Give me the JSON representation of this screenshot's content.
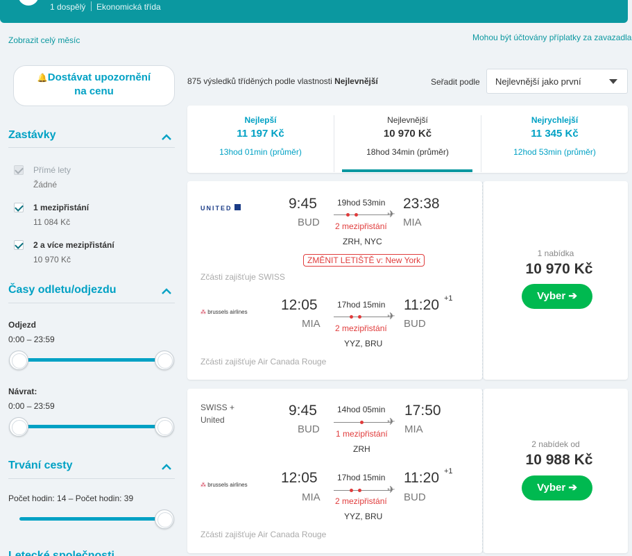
{
  "header": {
    "passengers": "1 dospělý",
    "cabin": "Ekonomická třída"
  },
  "links": {
    "whole_month": "Zobrazit celý měsíc",
    "bag_fees": "Mohou být účtovány příplatky za zavazadla"
  },
  "alert": {
    "line1": "Dostávat upozornění",
    "line2": "na cenu"
  },
  "filters": {
    "stops": {
      "title": "Zastávky",
      "options": [
        {
          "label": "Přímé lety",
          "sub": "Žádné"
        },
        {
          "label": "1 mezipřistání",
          "sub": "11 084 Kč"
        },
        {
          "label": "2 a více mezipřistání",
          "sub": "10 970 Kč"
        }
      ]
    },
    "times": {
      "title": "Časy odletu/odjezdu",
      "depart_label": "Odjezd",
      "depart_range": "0:00 – 23:59",
      "return_label": "Návrat:",
      "return_range": "0:00 – 23:59"
    },
    "duration": {
      "title": "Trvání cesty",
      "range": "Počet hodin: 14 – Počet hodin: 39"
    }
  },
  "sort": {
    "count_text": "875 výsledků tříděných podle vlastnosti",
    "count_bold": "Nejlevnější",
    "label": "Seřadit podle",
    "selected": "Nejlevnější jako první"
  },
  "tabs": [
    {
      "label": "Nejlepší",
      "price": "11 197 Kč",
      "duration": "13hod 01min (průměr)"
    },
    {
      "label": "Nejlevnější",
      "price": "10 970 Kč",
      "duration": "18hod 34min (průměr)"
    },
    {
      "label": "Nejrychlejší",
      "price": "11 345 Kč",
      "duration": "12hod 53min (průměr)"
    }
  ],
  "results": [
    {
      "outbound": {
        "airline": "UNITED",
        "dep": "9:45",
        "dep_ap": "BUD",
        "dur": "19hod 53min",
        "stops": "2 mezipřistání",
        "arr": "23:38",
        "arr_ap": "MIA",
        "via": "ZRH, NYC",
        "warning": "ZMĚNIT LETIŠTĚ v: New York",
        "operated": "Zčásti zajišťuje SWISS"
      },
      "inbound": {
        "airline": "brussels airlines",
        "dep": "12:05",
        "dep_ap": "MIA",
        "dur": "17hod 15min",
        "stops": "2 mezipřistání",
        "arr": "11:20",
        "arr_ap": "BUD",
        "plus": "+1",
        "via": "YYZ, BRU",
        "operated": "Zčásti zajišťuje Air Canada Rouge"
      },
      "offers": "1 nabídka",
      "price": "10 970 Kč",
      "button": "Vyber ➔"
    },
    {
      "outbound": {
        "airline1": "SWISS +",
        "airline2": "United",
        "dep": "9:45",
        "dep_ap": "BUD",
        "dur": "14hod 05min",
        "stops": "1 mezipřistání",
        "arr": "17:50",
        "arr_ap": "MIA",
        "via": "ZRH"
      },
      "inbound": {
        "airline": "brussels airlines",
        "dep": "12:05",
        "dep_ap": "MIA",
        "dur": "17hod 15min",
        "stops": "2 mezipřistání",
        "arr": "11:20",
        "arr_ap": "BUD",
        "plus": "+1",
        "via": "YYZ, BRU",
        "operated": "Zčásti zajišťuje Air Canada Rouge"
      },
      "offers": "2 nabídek od",
      "price": "10 988 Kč",
      "button": "Vyber ➔"
    }
  ],
  "filters_next": {
    "title": "Letecké společnosti"
  }
}
